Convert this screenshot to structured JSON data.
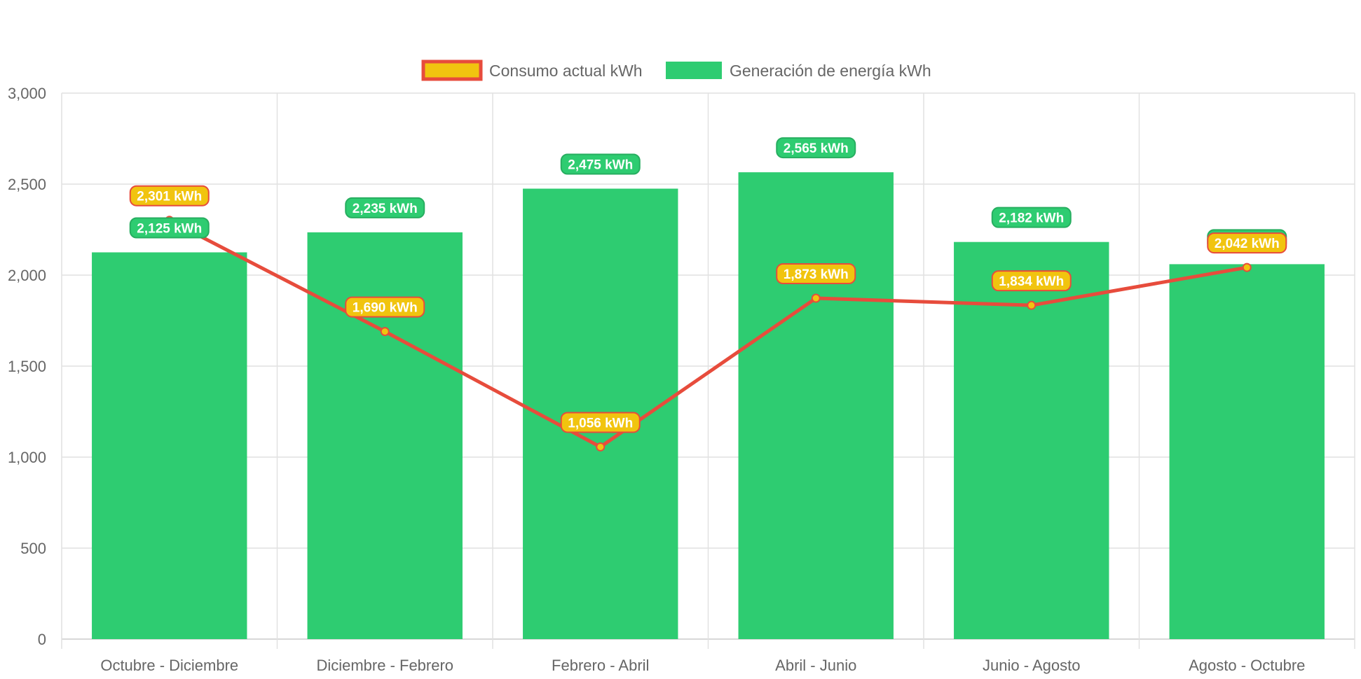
{
  "chart_data": {
    "type": "bar",
    "categories": [
      "Octubre - Diciembre",
      "Diciembre - Febrero",
      "Febrero - Abril",
      "Abril - Junio",
      "Junio - Agosto",
      "Agosto - Octubre"
    ],
    "series": [
      {
        "name": "Consumo actual kWh",
        "type": "line",
        "values": [
          2301,
          1690,
          1056,
          1873,
          1834,
          2042
        ],
        "labels": [
          "2,301 kWh",
          "1,690 kWh",
          "1,056 kWh",
          "1,873 kWh",
          "1,834 kWh",
          "2,042 kWh"
        ],
        "color": "#e74c3c",
        "fill": "#f1c40f"
      },
      {
        "name": "Generación de energía kWh",
        "type": "bar",
        "values": [
          2125,
          2235,
          2475,
          2565,
          2182,
          2060
        ],
        "labels": [
          "2,125 kWh",
          "2,235 kWh",
          "2,475 kWh",
          "2,565 kWh",
          "2,182 kWh",
          ""
        ],
        "color": "#2ecc71"
      }
    ],
    "ylim": [
      0,
      3000
    ],
    "yticks": [
      0,
      500,
      1000,
      1500,
      2000,
      2500,
      3000
    ],
    "ytick_labels": [
      "0",
      "500",
      "1,000",
      "1,500",
      "2,000",
      "2,500",
      "3,000"
    ],
    "grid": true,
    "legend_position": "top-center"
  }
}
